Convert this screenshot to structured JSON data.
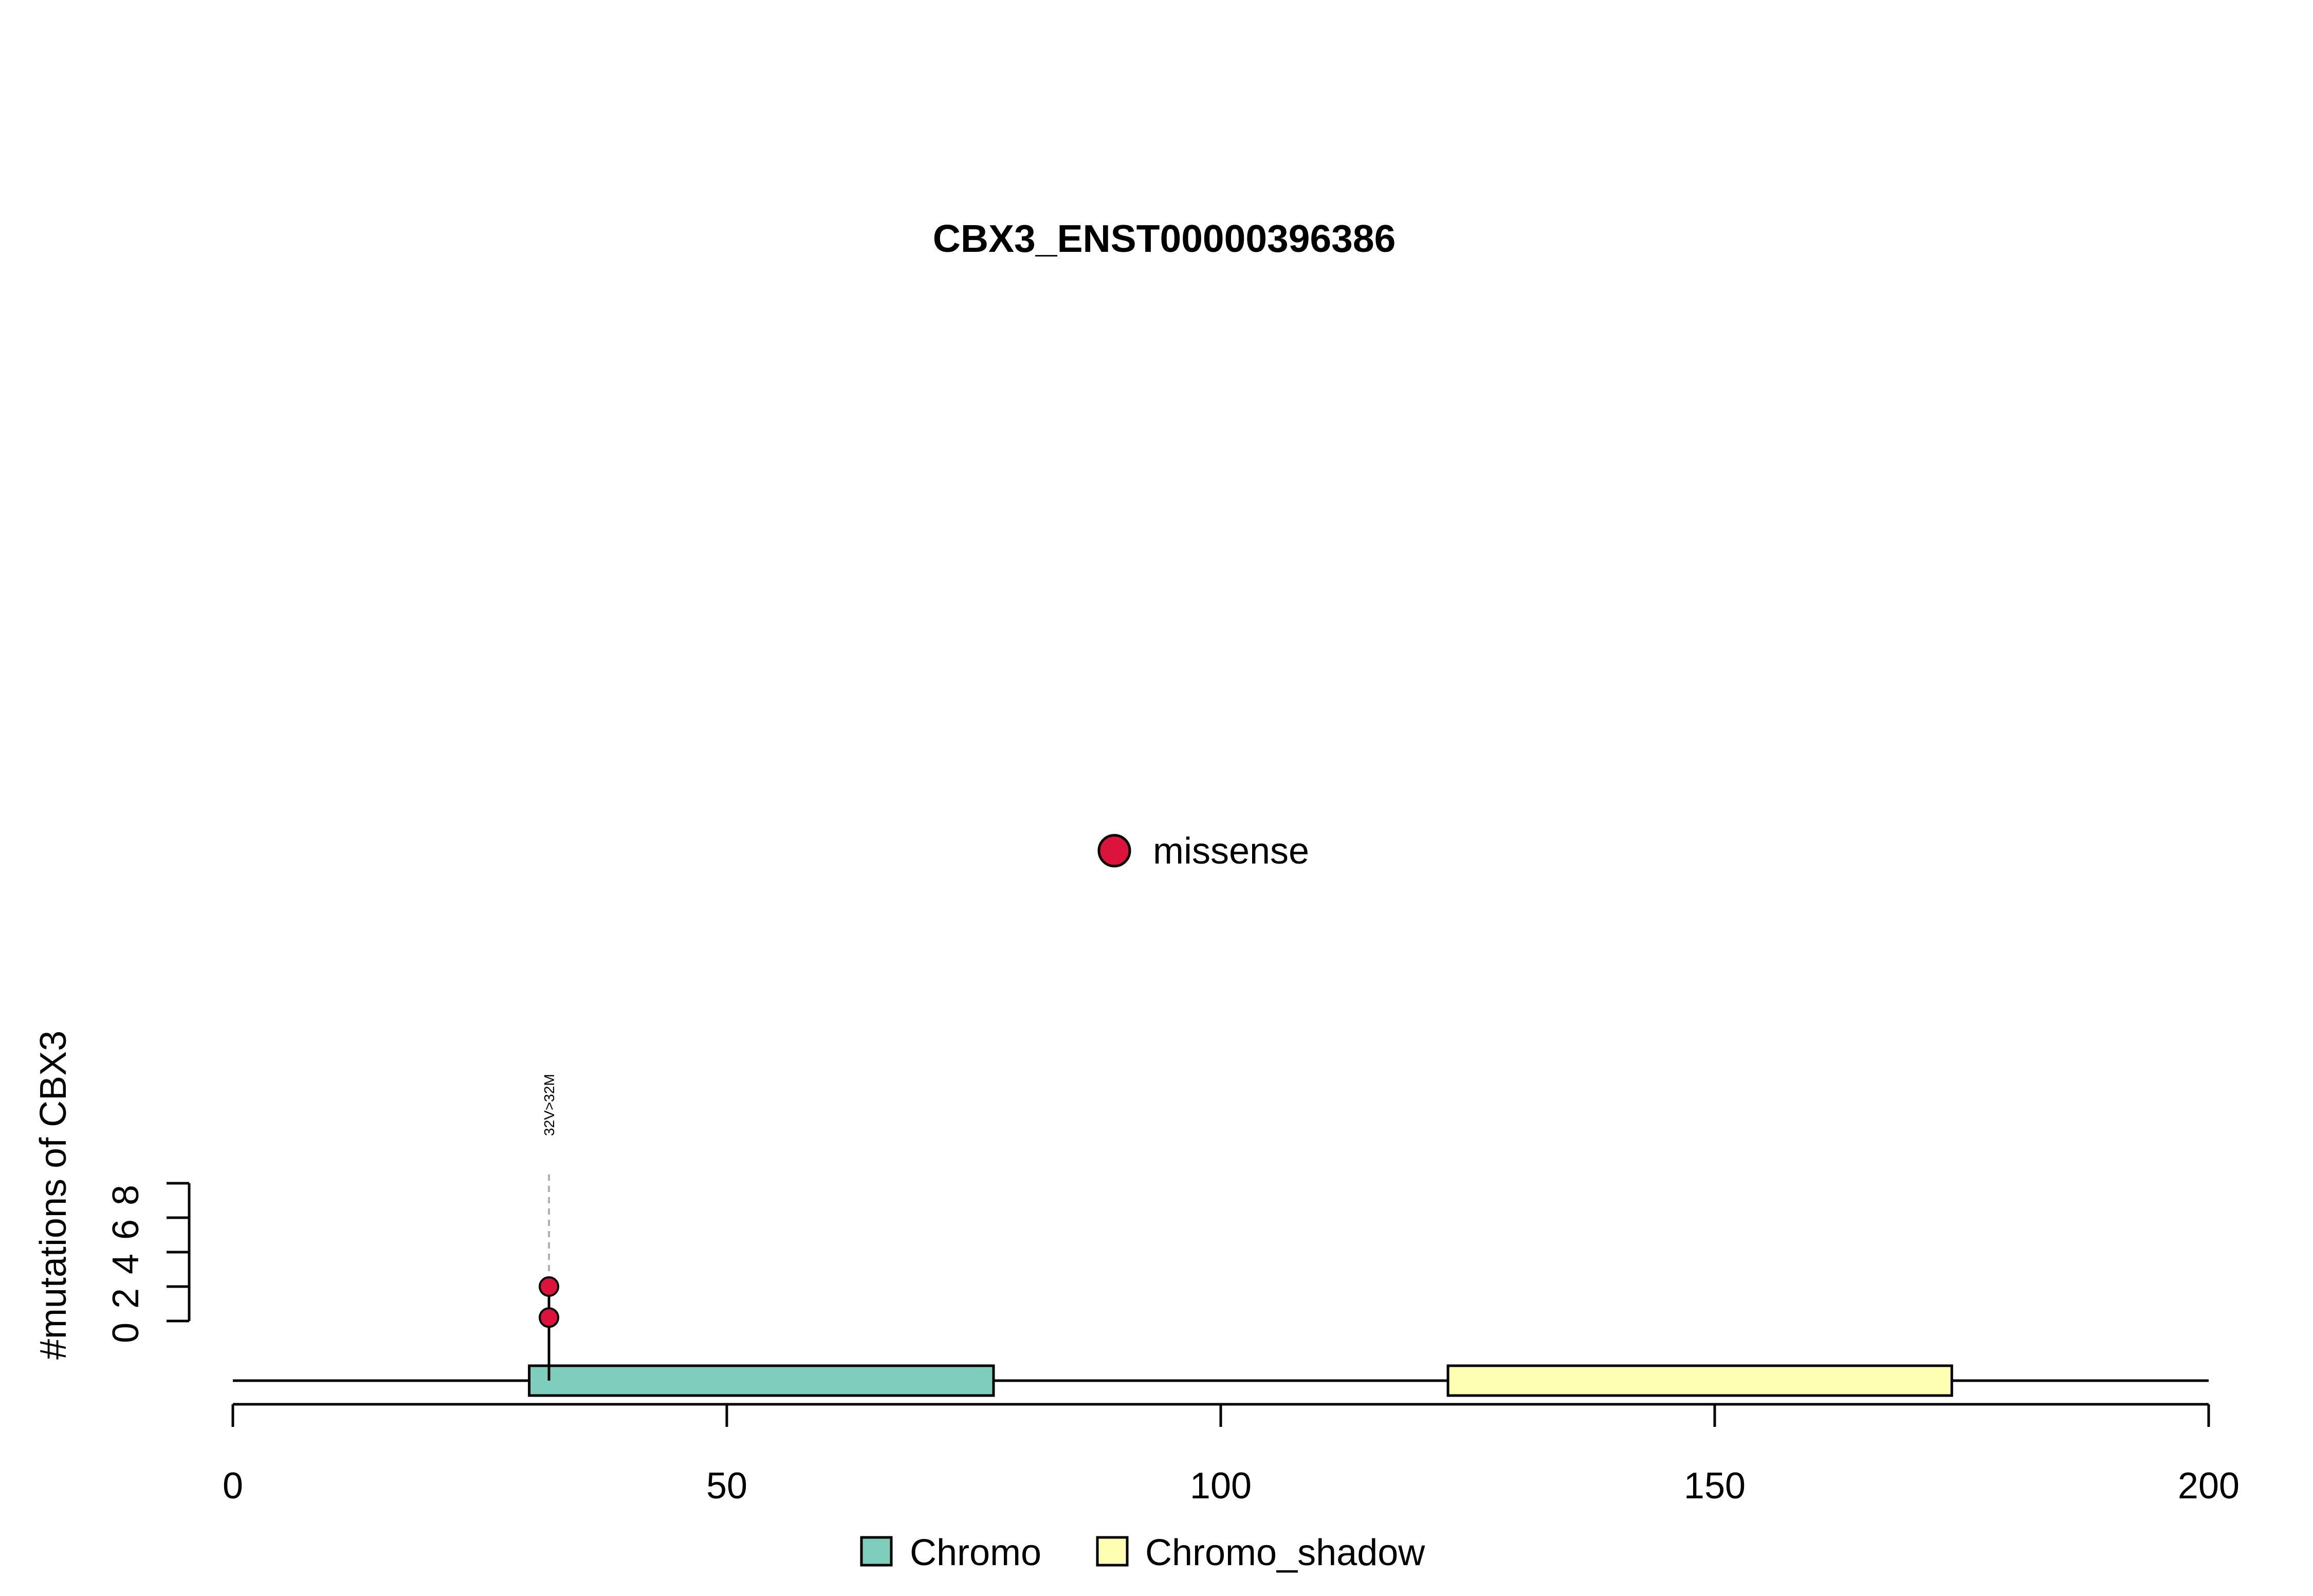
{
  "chart_data": {
    "type": "lollipop",
    "title": "CBX3_ENST00000396386",
    "xlabel": "",
    "ylabel": "#mutations of CBX3",
    "xlim": [
      0,
      200
    ],
    "x_ticks": [
      "0",
      "50",
      "100",
      "150",
      "200"
    ],
    "ylim": [
      0,
      8
    ],
    "y_ticks": [
      "0",
      "2",
      "4",
      "6",
      "8"
    ],
    "protein_length": 200,
    "domains": [
      {
        "name": "Chromo",
        "start": 30,
        "end": 77,
        "color": "#7FCDBB"
      },
      {
        "name": "Chromo_shadow",
        "start": 123,
        "end": 174,
        "color": "#FFFFB3"
      }
    ],
    "mutations": [
      {
        "position": 32,
        "count": 2,
        "label": "32V>32M",
        "type": "missense"
      }
    ],
    "mutation_types": [
      {
        "name": "missense",
        "color": "#DC143C"
      }
    ],
    "legend_position": "bottom"
  }
}
